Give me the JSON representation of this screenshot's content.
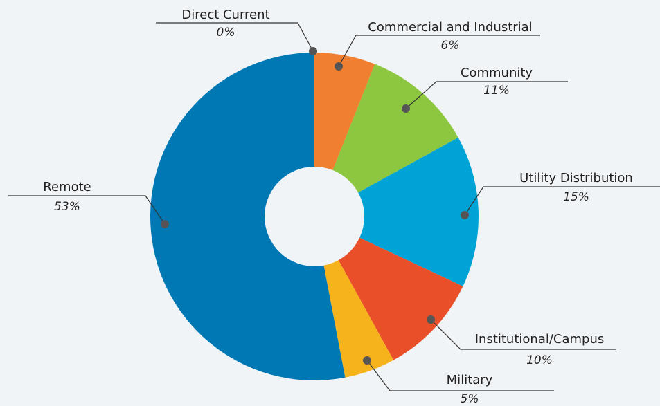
{
  "chart_data": {
    "type": "pie",
    "donut": true,
    "slices": [
      {
        "label": "Direct Current",
        "value": 0,
        "value_label": "0%",
        "color": "#8a8a8a"
      },
      {
        "label": "Commercial and Industrial",
        "value": 6,
        "value_label": "6%",
        "color": "#f08030"
      },
      {
        "label": "Community",
        "value": 11,
        "value_label": "11%",
        "color": "#8dc63f"
      },
      {
        "label": "Utility Distribution",
        "value": 15,
        "value_label": "15%",
        "color": "#00a3d6"
      },
      {
        "label": "Institutional/Campus",
        "value": 10,
        "value_label": "10%",
        "color": "#e9502a"
      },
      {
        "label": "Military",
        "value": 5,
        "value_label": "5%",
        "color": "#f7b31b"
      },
      {
        "label": "Remote",
        "value": 53,
        "value_label": "53%",
        "color": "#0078b4"
      }
    ]
  }
}
